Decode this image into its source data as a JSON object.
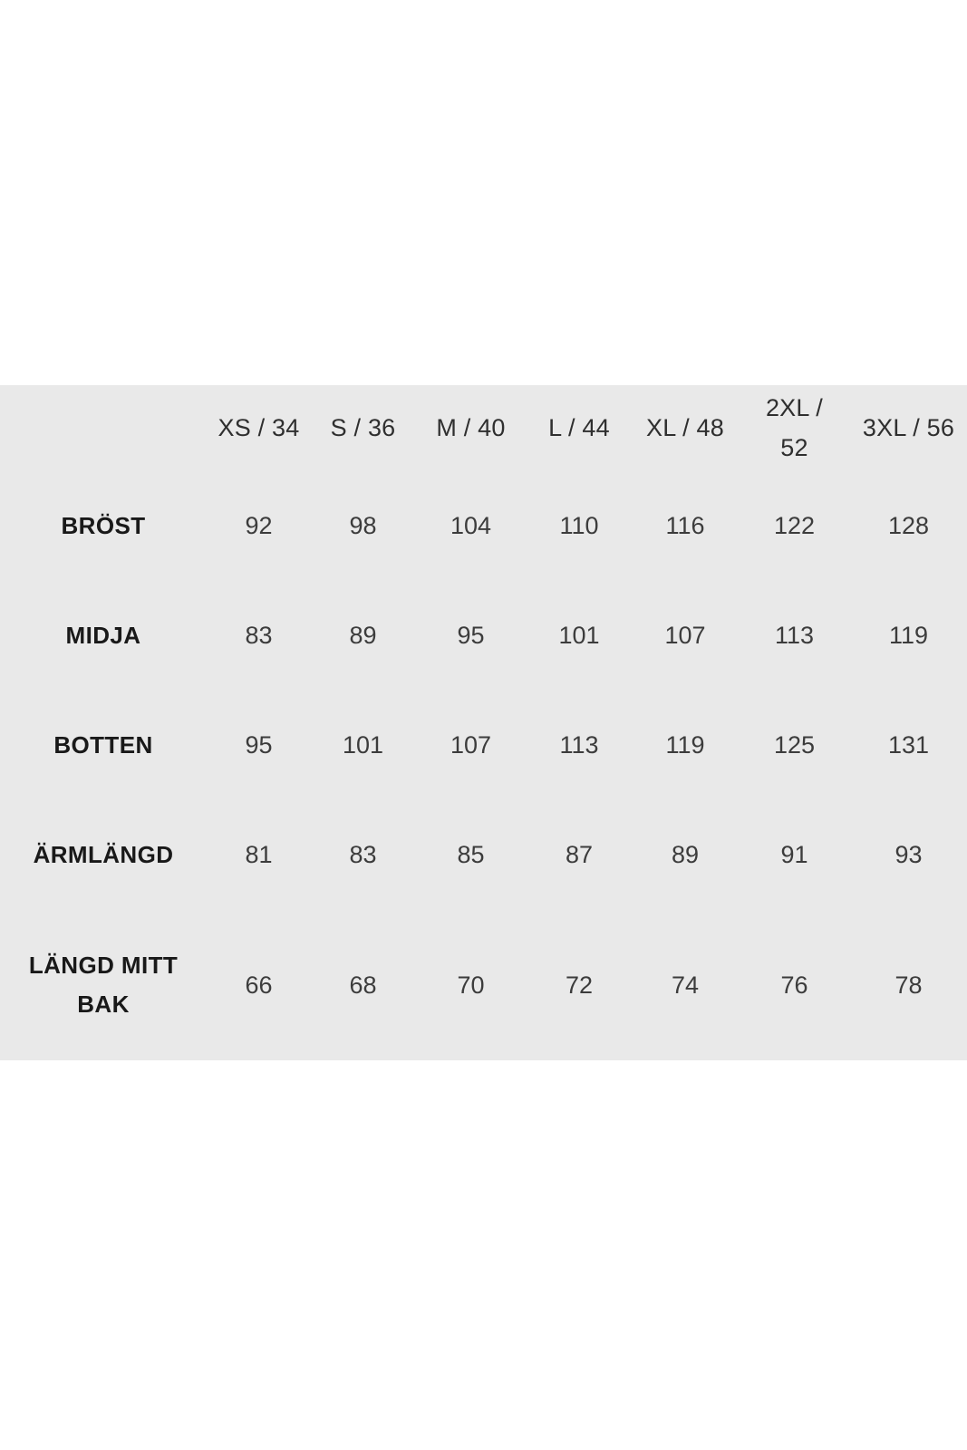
{
  "colors": {
    "page_background": "#ffffff",
    "panel_background": "#e9e9e9",
    "row_label_text": "#191919",
    "header_text": "#2f2f2f",
    "value_text": "#3c3c3c"
  },
  "chart_data": {
    "type": "table",
    "columns": [
      "XS / 34",
      "S / 36",
      "M / 40",
      "L / 44",
      "XL / 48",
      "2XL / 52",
      "3XL / 56"
    ],
    "rows": [
      {
        "label": "BRÖST",
        "values": [
          92,
          98,
          104,
          110,
          116,
          122,
          128
        ]
      },
      {
        "label": "MIDJA",
        "values": [
          83,
          89,
          95,
          101,
          107,
          113,
          119
        ]
      },
      {
        "label": "BOTTEN",
        "values": [
          95,
          101,
          107,
          113,
          119,
          125,
          131
        ]
      },
      {
        "label": "ÄRMLÄNGD",
        "values": [
          81,
          83,
          85,
          87,
          89,
          91,
          93
        ]
      },
      {
        "label": "LÄNGD MITT BAK",
        "values": [
          66,
          68,
          70,
          72,
          74,
          76,
          78
        ]
      }
    ]
  }
}
